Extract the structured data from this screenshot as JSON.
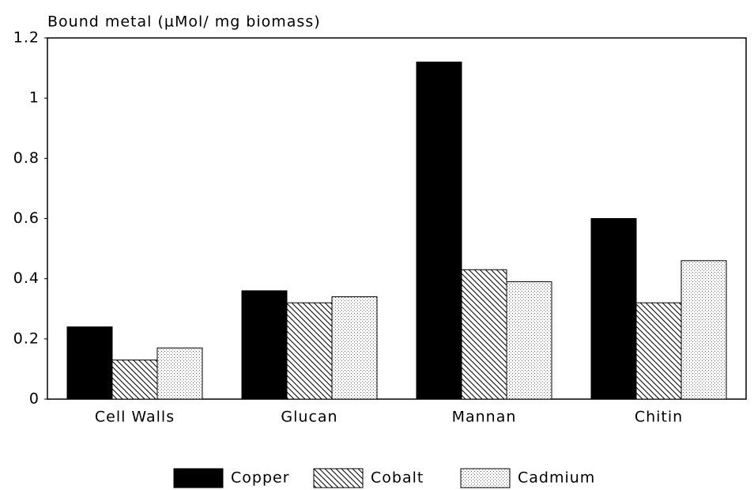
{
  "chart_data": {
    "type": "bar",
    "y_label": "Bound metal  (µMol/ mg biomass)",
    "categories": [
      "Cell Walls",
      "Glucan",
      "Mannan",
      "Chitin"
    ],
    "series": [
      {
        "name": "Copper",
        "color": "#000000",
        "pattern": "solid",
        "values": [
          0.24,
          0.36,
          1.12,
          0.6
        ]
      },
      {
        "name": "Cobalt",
        "color": "#000000",
        "pattern": "hatch",
        "values": [
          0.13,
          0.32,
          0.43,
          0.32
        ]
      },
      {
        "name": "Cadmium",
        "color": "#000000",
        "pattern": "dots",
        "values": [
          0.17,
          0.34,
          0.39,
          0.46
        ]
      }
    ],
    "ylim": [
      0,
      1.2
    ],
    "yticks": [
      0,
      0.2,
      0.4,
      0.6,
      0.8,
      1,
      1.2
    ],
    "grid": false,
    "legend": "bottom"
  }
}
